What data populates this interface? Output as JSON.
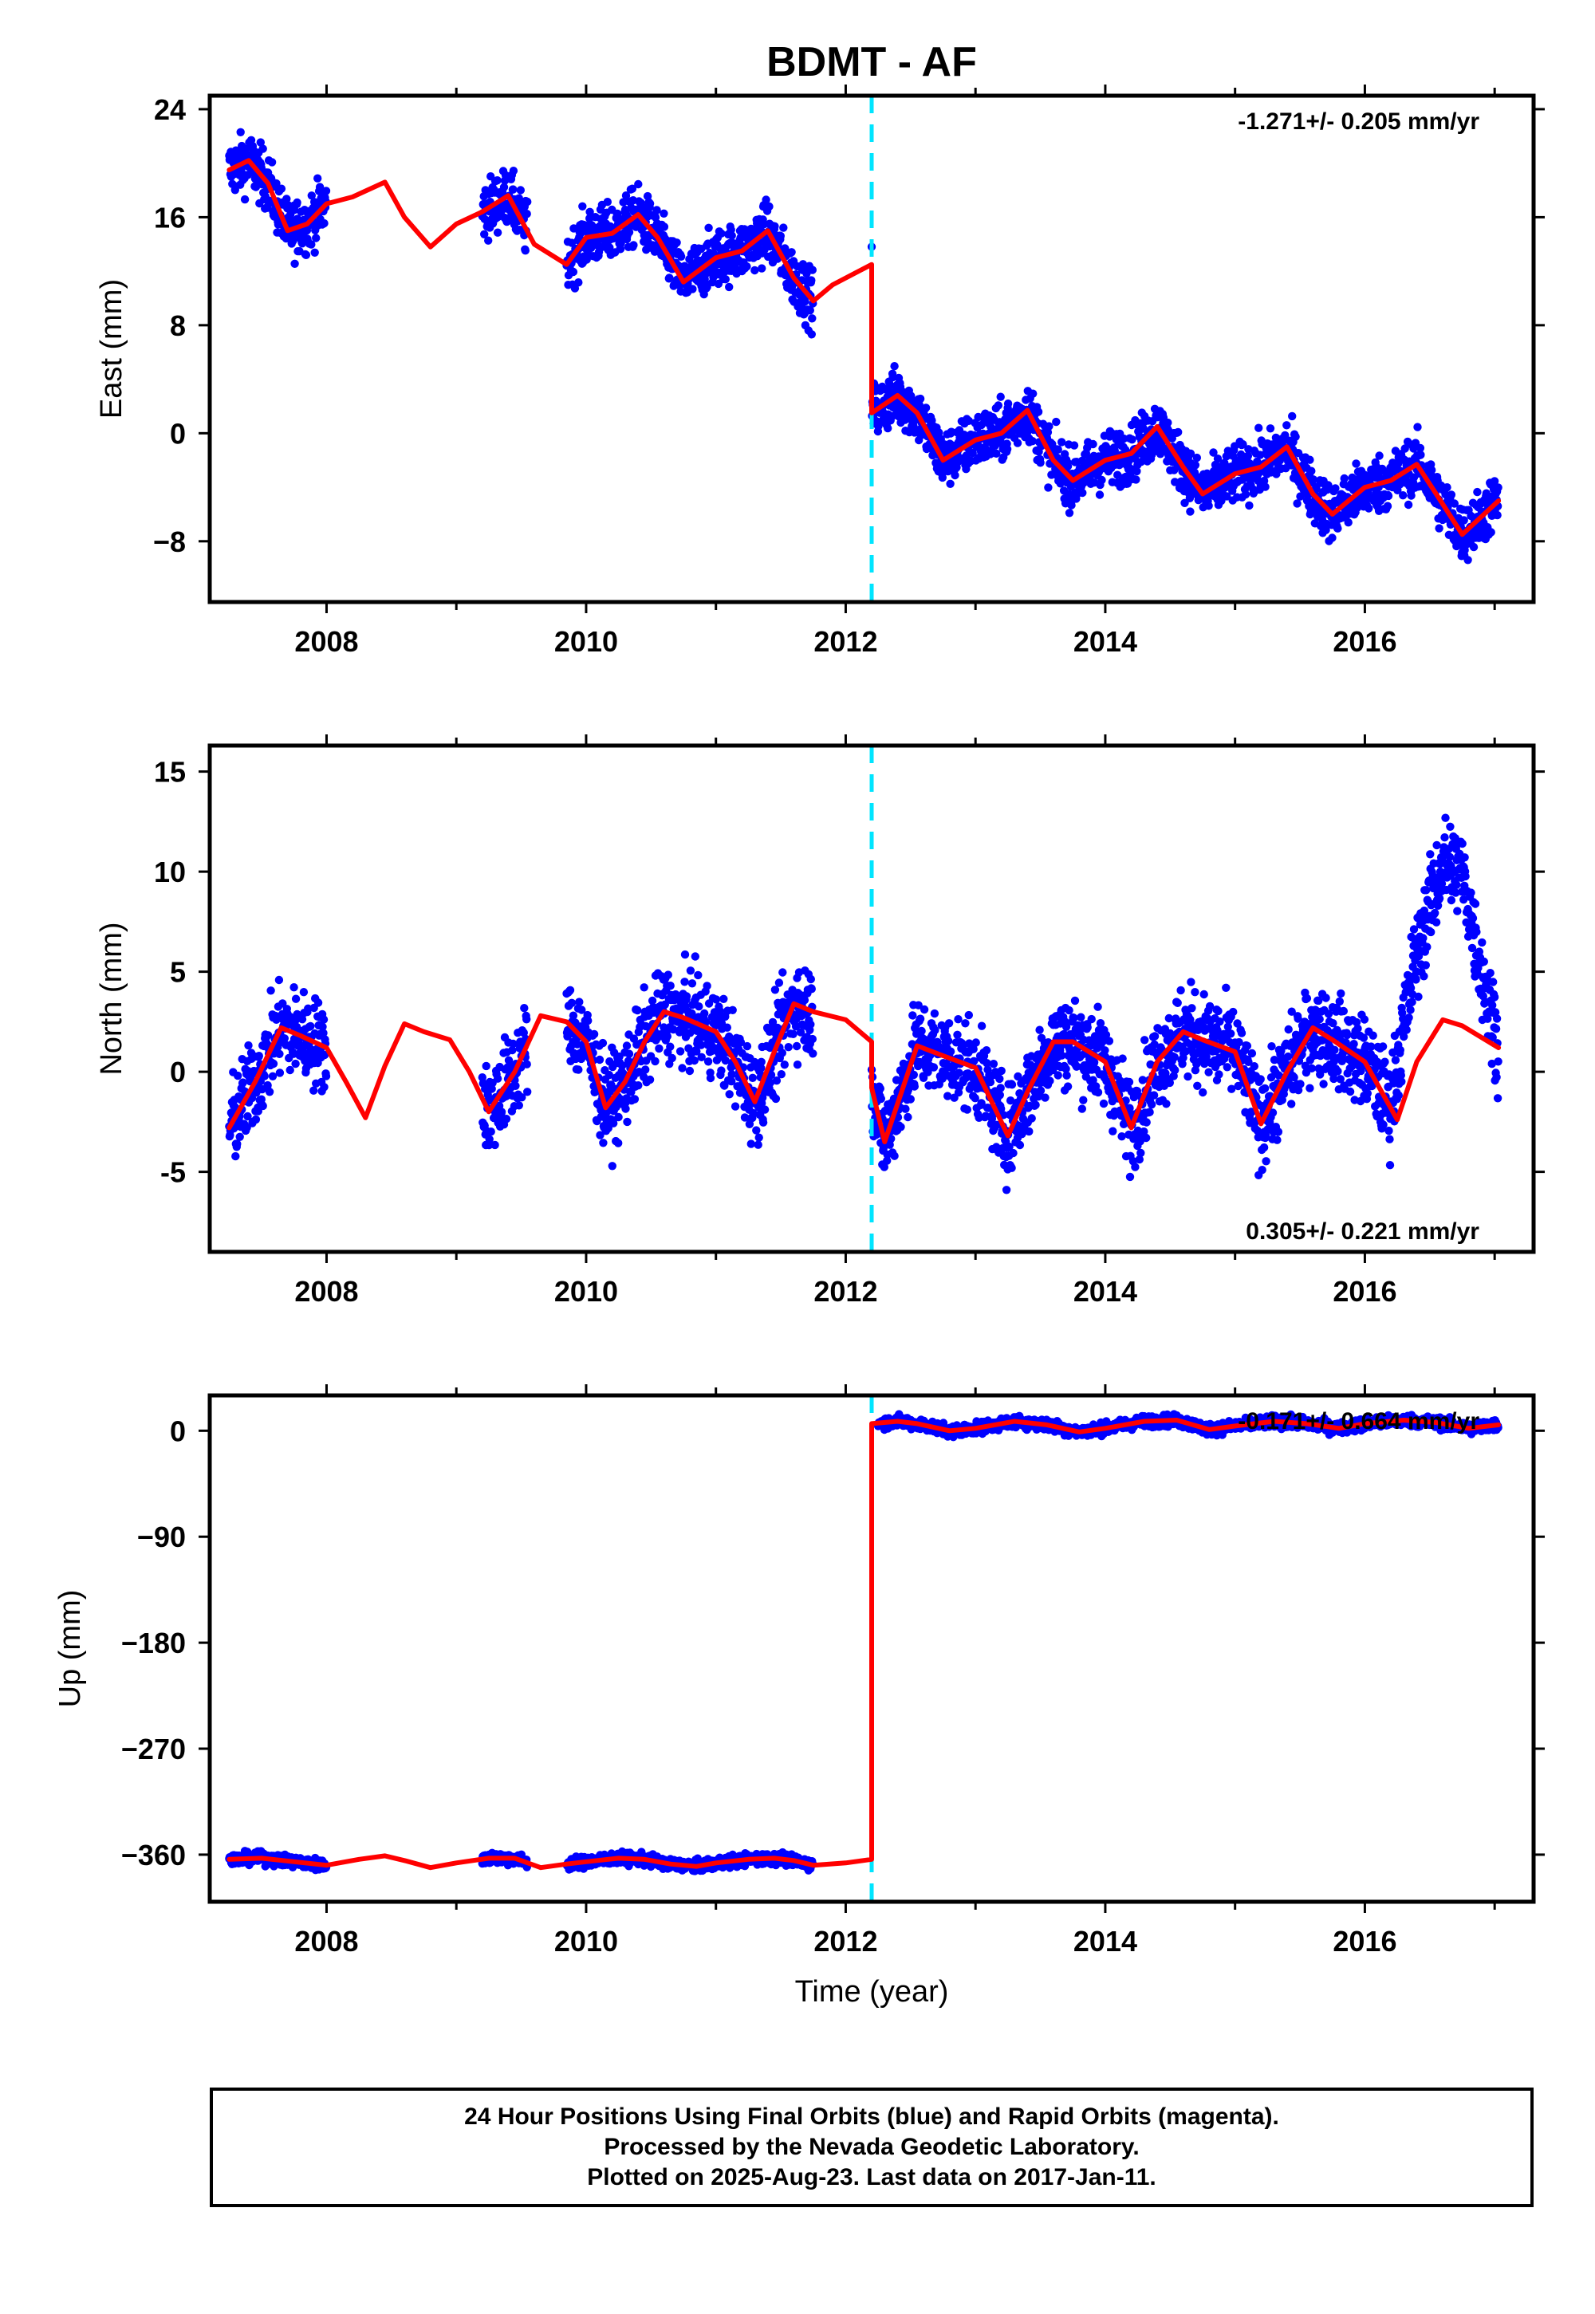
{
  "title": "BDMT - AF",
  "colors": {
    "final_orbits": "#0000ff",
    "model": "#ff0000",
    "offset_marker": "#00e5ff",
    "frame": "#000000"
  },
  "chart_data": [
    {
      "type": "scatter",
      "component": "east",
      "ylabel": "East (mm)",
      "xlabel": "",
      "xlim": [
        2007.1,
        2017.3
      ],
      "ylim": [
        -12.5,
        25
      ],
      "yticks": [
        24,
        16,
        8,
        0,
        -8
      ],
      "ytick_labels": [
        "24",
        "16",
        "8",
        "0",
        "−8"
      ],
      "xticks": [
        2008,
        2010,
        2012,
        2014,
        2016
      ],
      "xtick_labels": [
        "2008",
        "2010",
        "2012",
        "2014",
        "2016"
      ],
      "rate_label": "-1.271+/- 0.205 mm/yr",
      "rate_label_position": "top-right",
      "offset_epoch": 2012.2,
      "grid": false,
      "data_segments": [
        [
          2007.25,
          2008.0
        ],
        [
          2009.2,
          2009.55
        ],
        [
          2009.85,
          2011.75
        ],
        [
          2012.2,
          2017.03
        ]
      ],
      "model": {
        "x": [
          2007.25,
          2007.4,
          2007.55,
          2007.7,
          2007.85,
          2008.0,
          2008.2,
          2008.45,
          2008.6,
          2008.8,
          2009.0,
          2009.2,
          2009.4,
          2009.6,
          2009.85,
          2010.0,
          2010.2,
          2010.4,
          2010.55,
          2010.75,
          2011.0,
          2011.2,
          2011.4,
          2011.6,
          2011.75,
          2011.9,
          2012.1,
          2012.2,
          2012.2,
          2012.4,
          2012.55,
          2012.75,
          2013.0,
          2013.2,
          2013.4,
          2013.6,
          2013.75,
          2014.0,
          2014.2,
          2014.4,
          2014.6,
          2014.75,
          2015.0,
          2015.2,
          2015.4,
          2015.6,
          2015.75,
          2016.0,
          2016.2,
          2016.4,
          2016.55,
          2016.75,
          2017.03
        ],
        "y": [
          19.5,
          20.2,
          18.5,
          15.0,
          15.5,
          17.0,
          17.5,
          18.6,
          16.0,
          13.8,
          15.5,
          16.4,
          17.6,
          14.0,
          12.5,
          14.5,
          14.8,
          16.2,
          14.5,
          11.2,
          13.0,
          13.5,
          15.0,
          11.5,
          9.8,
          11.0,
          12.0,
          12.5,
          1.5,
          2.8,
          1.5,
          -2.0,
          -0.5,
          0.0,
          1.7,
          -2.0,
          -3.5,
          -2.0,
          -1.5,
          0.5,
          -2.5,
          -4.5,
          -3.0,
          -2.5,
          -1.0,
          -4.5,
          -6.0,
          -4.0,
          -3.5,
          -2.3,
          -4.5,
          -7.5,
          -5.0
        ]
      },
      "scatter_amplitude": 1.5
    },
    {
      "type": "scatter",
      "component": "north",
      "ylabel": "North (mm)",
      "xlabel": "",
      "xlim": [
        2007.1,
        2017.3
      ],
      "ylim": [
        -9,
        16.3
      ],
      "yticks": [
        15,
        10,
        5,
        0,
        -5
      ],
      "ytick_labels": [
        "15",
        "10",
        "5",
        "0",
        "-5"
      ],
      "xticks": [
        2008,
        2010,
        2012,
        2014,
        2016
      ],
      "xtick_labels": [
        "2008",
        "2010",
        "2012",
        "2014",
        "2016"
      ],
      "rate_label": "0.305+/- 0.221 mm/yr",
      "rate_label_position": "bottom-right",
      "offset_epoch": 2012.2,
      "grid": false,
      "data_segments": [
        [
          2007.25,
          2008.0
        ],
        [
          2009.2,
          2009.55
        ],
        [
          2009.85,
          2011.75
        ],
        [
          2012.2,
          2017.03
        ]
      ],
      "model": {
        "x": [
          2007.25,
          2007.45,
          2007.65,
          2007.8,
          2008.0,
          2008.15,
          2008.3,
          2008.45,
          2008.6,
          2008.75,
          2008.95,
          2009.1,
          2009.25,
          2009.45,
          2009.65,
          2009.85,
          2010.0,
          2010.15,
          2010.3,
          2010.45,
          2010.6,
          2010.75,
          2011.0,
          2011.15,
          2011.3,
          2011.45,
          2011.6,
          2011.75,
          2012.0,
          2012.2,
          2012.2,
          2012.3,
          2012.55,
          2012.75,
          2013.0,
          2013.25,
          2013.4,
          2013.6,
          2013.75,
          2014.0,
          2014.2,
          2014.4,
          2014.6,
          2014.75,
          2015.0,
          2015.2,
          2015.4,
          2015.6,
          2015.75,
          2016.0,
          2016.25,
          2016.4,
          2016.6,
          2016.75,
          2017.03
        ],
        "y": [
          -2.8,
          -0.5,
          2.2,
          1.8,
          1.2,
          -0.5,
          -2.3,
          0.3,
          2.4,
          2.0,
          1.6,
          0.0,
          -2.0,
          0.0,
          2.8,
          2.5,
          1.5,
          -1.8,
          -0.5,
          1.5,
          3.0,
          2.7,
          2.0,
          0.5,
          -1.5,
          1.0,
          3.4,
          3.0,
          2.6,
          1.5,
          -0.8,
          -3.5,
          1.3,
          0.8,
          0.2,
          -3.2,
          -1.0,
          1.5,
          1.5,
          0.5,
          -2.8,
          0.5,
          2.0,
          1.6,
          1.0,
          -2.6,
          0.0,
          2.2,
          1.6,
          0.5,
          -2.4,
          0.5,
          2.6,
          2.3,
          1.2
        ]
      },
      "anomaly": {
        "x": [
          2016.2,
          2016.4,
          2016.6,
          2016.75,
          2016.9,
          2017.03
        ],
        "y": [
          -1.5,
          6.0,
          10.5,
          10.0,
          5.0,
          1.5
        ]
      },
      "scatter_amplitude": 1.6
    },
    {
      "type": "scatter",
      "component": "up",
      "ylabel": "Up (mm)",
      "xlabel": "Time (year)",
      "xlim": [
        2007.1,
        2017.3
      ],
      "ylim": [
        -400,
        30
      ],
      "yticks": [
        0,
        -90,
        -180,
        -270,
        -360
      ],
      "ytick_labels": [
        "0",
        "−90",
        "−180",
        "−270",
        "−360"
      ],
      "xticks": [
        2008,
        2010,
        2012,
        2014,
        2016
      ],
      "xtick_labels": [
        "2008",
        "2010",
        "2012",
        "2014",
        "2016"
      ],
      "rate_label": "-0.171+/- 0.664 mm/yr",
      "rate_label_position": "top-right",
      "offset_epoch": 2012.2,
      "grid": false,
      "data_segments": [
        [
          2007.25,
          2008.0
        ],
        [
          2009.2,
          2009.55
        ],
        [
          2009.85,
          2011.75
        ],
        [
          2012.25,
          2017.03
        ]
      ],
      "model": {
        "x": [
          2007.25,
          2007.5,
          2007.75,
          2008.0,
          2008.25,
          2008.45,
          2008.6,
          2008.8,
          2009.0,
          2009.25,
          2009.45,
          2009.65,
          2009.85,
          2010.0,
          2010.25,
          2010.45,
          2010.65,
          2010.85,
          2011.0,
          2011.25,
          2011.45,
          2011.6,
          2011.75,
          2012.0,
          2012.2,
          2012.2,
          2012.4,
          2012.55,
          2012.8,
          2013.0,
          2013.3,
          2013.55,
          2013.8,
          2014.0,
          2014.3,
          2014.55,
          2014.8,
          2015.0,
          2015.3,
          2015.55,
          2015.8,
          2016.0,
          2016.3,
          2016.55,
          2016.8,
          2017.03
        ],
        "y": [
          -364,
          -363,
          -366,
          -369,
          -364,
          -361,
          -365,
          -371,
          -367,
          -363,
          -363,
          -371,
          -368,
          -366,
          -363,
          -364,
          -368,
          -370,
          -367,
          -364,
          -363,
          -365,
          -369,
          -367,
          -364,
          6,
          8,
          6,
          0,
          2,
          8,
          5,
          -1,
          2,
          8,
          9,
          1,
          4,
          8,
          6,
          2,
          6,
          9,
          7,
          2,
          5
        ]
      },
      "scatter_amplitude": 3.5
    }
  ],
  "footer": {
    "line1": "24 Hour Positions Using Final Orbits (blue) and Rapid Orbits (magenta).",
    "line2": "Processed by the Nevada Geodetic Laboratory.",
    "line3": "Plotted on 2025-Aug-23. Last data on 2017-Jan-11."
  }
}
